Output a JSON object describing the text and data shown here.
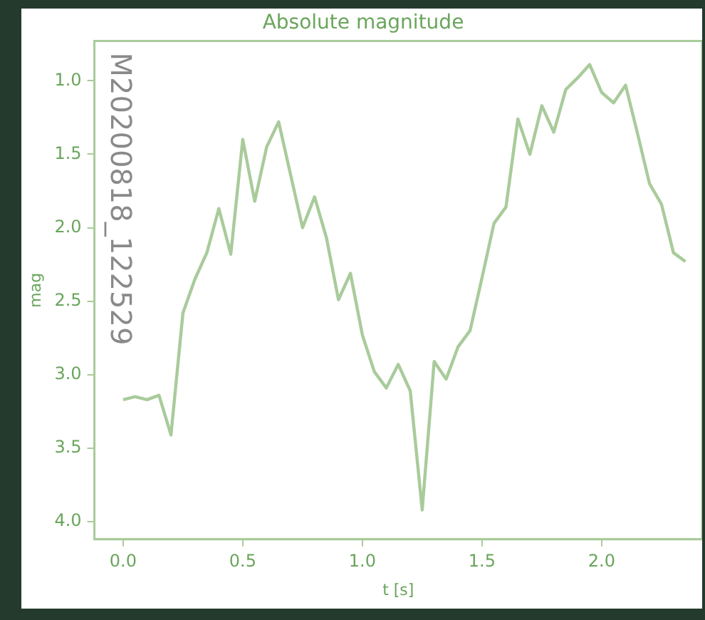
{
  "chart_data": {
    "type": "line",
    "title": "Absolute magnitude",
    "xlabel": "t [s]",
    "ylabel": "mag",
    "annotations": [
      "M20200818_122529"
    ],
    "x": [
      0,
      0.05,
      0.1,
      0.15,
      0.2,
      0.25,
      0.3,
      0.35,
      0.4,
      0.45,
      0.5,
      0.55,
      0.6,
      0.65,
      0.7,
      0.75,
      0.8,
      0.85,
      0.9,
      0.95,
      1.0,
      1.05,
      1.1,
      1.15,
      1.2,
      1.25,
      1.3,
      1.35,
      1.4,
      1.45,
      1.5,
      1.55,
      1.6,
      1.65,
      1.7,
      1.75,
      1.8,
      1.85,
      1.9,
      1.95,
      2.0,
      2.05,
      2.1,
      2.15,
      2.2,
      2.25,
      2.3,
      2.35
    ],
    "series": [
      {
        "color": "#a9cb9b",
        "values": [
          3.17,
          3.15,
          3.17,
          3.14,
          3.41,
          2.58,
          2.35,
          2.17,
          1.87,
          2.18,
          1.4,
          1.82,
          1.45,
          1.28,
          1.64,
          2.0,
          1.79,
          2.07,
          2.49,
          2.31,
          2.73,
          2.98,
          3.09,
          2.93,
          3.11,
          3.92,
          2.91,
          3.03,
          2.81,
          2.7,
          2.34,
          1.97,
          1.86,
          1.26,
          1.5,
          1.17,
          1.35,
          1.06,
          0.98,
          0.89,
          1.08,
          1.15,
          1.03,
          1.36,
          1.7,
          1.84,
          2.17,
          2.23
        ]
      }
    ],
    "xlim": [
      -0.12,
      2.42
    ],
    "ylim": [
      4.12,
      0.73
    ],
    "xticks": [
      {
        "value": 0,
        "label": "0.0"
      },
      {
        "value": 0.5,
        "label": "0.5"
      },
      {
        "value": 1,
        "label": "1.0"
      },
      {
        "value": 1.5,
        "label": "1.5"
      },
      {
        "value": 2,
        "label": "2.0"
      }
    ],
    "yticks": [
      {
        "value": 1,
        "label": "1.0"
      },
      {
        "value": 1.5,
        "label": "1.5"
      },
      {
        "value": 2,
        "label": "2.0"
      },
      {
        "value": 2.5,
        "label": "2.5"
      },
      {
        "value": 3,
        "label": "3.0"
      },
      {
        "value": 3.5,
        "label": "3.5"
      },
      {
        "value": 4,
        "label": "4.0"
      }
    ],
    "grid": false,
    "legend": false,
    "marker": "none",
    "line_style": "solid"
  }
}
